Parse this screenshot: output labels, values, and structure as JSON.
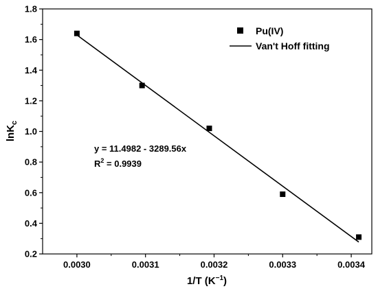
{
  "chart_data": {
    "type": "scatter",
    "xlabel": "1/T (K",
    "xlabel_sup": "−1",
    "xlabel_end": ")",
    "ylabel": "lnK",
    "ylabel_sub": "c",
    "xlim": [
      0.00295,
      0.00343
    ],
    "ylim": [
      0.2,
      1.8
    ],
    "xticks": [
      0.003,
      0.0031,
      0.0032,
      0.0033,
      0.0034
    ],
    "xtick_labels": [
      "0.0030",
      "0.0031",
      "0.0032",
      "0.0033",
      "0.0034"
    ],
    "yticks": [
      0.2,
      0.4,
      0.6,
      0.8,
      1.0,
      1.2,
      1.4,
      1.6,
      1.8
    ],
    "ytick_labels": [
      "0.2",
      "0.4",
      "0.6",
      "0.8",
      "1.0",
      "1.2",
      "1.4",
      "1.6",
      "1.8"
    ],
    "series": [
      {
        "name": "Pu(IV)",
        "kind": "scatter",
        "marker": "square",
        "color": "#000000",
        "x": [
          0.003,
          0.003095,
          0.003193,
          0.0033,
          0.003411
        ],
        "y": [
          1.64,
          1.3,
          1.02,
          0.59,
          0.31
        ]
      },
      {
        "name": "Van't Hoff fitting",
        "kind": "line",
        "color": "#000000",
        "intercept": 11.4982,
        "slope": -3289.56,
        "x_range": [
          0.003,
          0.003411
        ]
      }
    ],
    "annotations": {
      "equation": "y = 11.4982 - 3289.56x",
      "r2_prefix": "R",
      "r2_sup": "2",
      "r2_suffix": " = 0.9939"
    },
    "legend_position": "top-right",
    "grid": false
  }
}
